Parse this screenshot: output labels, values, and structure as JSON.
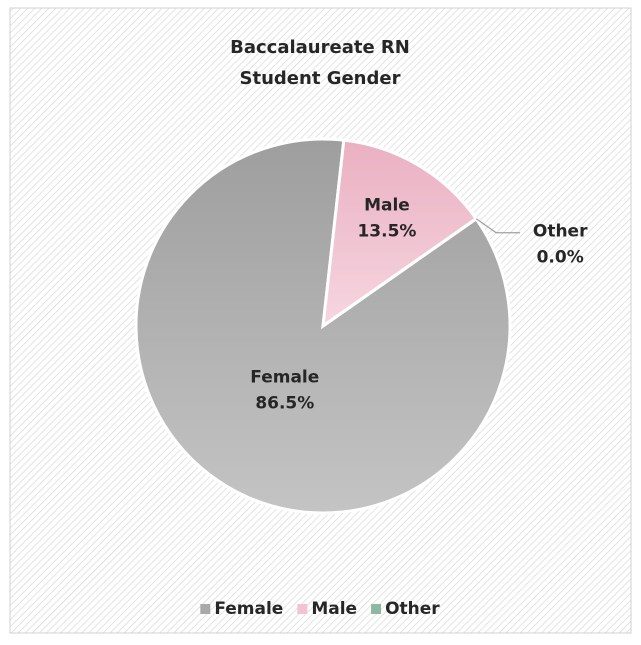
{
  "chart_data": {
    "type": "pie",
    "title": [
      "Baccalaureate RN",
      "Student Gender"
    ],
    "categories": [
      "Female",
      "Male",
      "Other"
    ],
    "values": [
      86.5,
      13.5,
      0.0
    ],
    "value_labels": [
      "86.5%",
      "13.5%",
      "0.0%"
    ],
    "colors": [
      "#a9a9a9",
      "#f2c4d2",
      "#8db8a6"
    ],
    "legend": "bottom"
  }
}
